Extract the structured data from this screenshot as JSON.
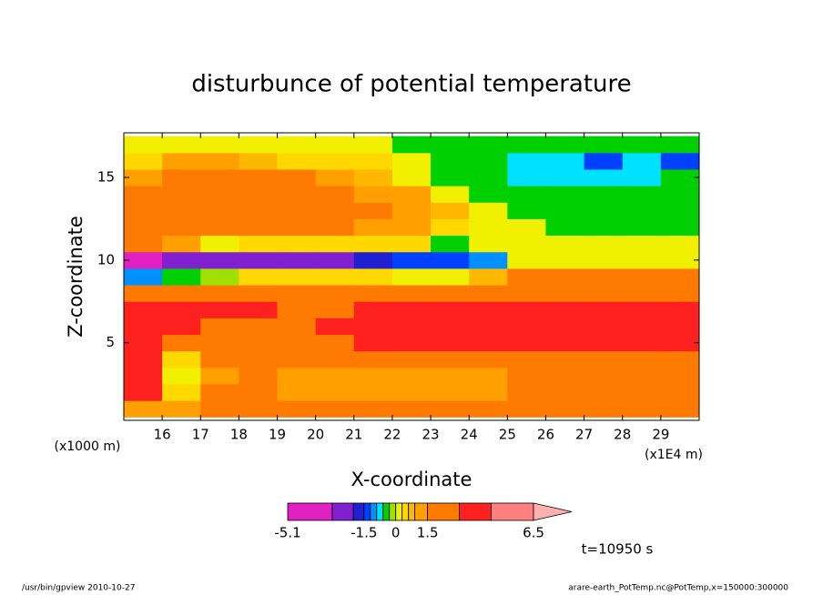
{
  "chart_data": {
    "type": "contour",
    "title": "disturbunce of potential temperature",
    "xlabel": "X-coordinate",
    "ylabel": "Z-coordinate",
    "x_unit_label": "(x1E4 m)",
    "y_unit_label": "(x1000 m)",
    "annotation": "t=10950 s",
    "xlim": [
      15,
      30
    ],
    "ylim": [
      0.3,
      17.7
    ],
    "xticks": [
      16,
      17,
      18,
      19,
      20,
      21,
      22,
      23,
      24,
      25,
      26,
      27,
      28,
      29
    ],
    "yticks": [
      5,
      10,
      15
    ],
    "x": [
      15.5,
      16.5,
      17.5,
      18.5,
      19.5,
      20.5,
      21.5,
      22.5,
      23.5,
      24.5,
      25.5,
      26.5,
      27.5,
      28.5,
      29.5
    ],
    "y": [
      1,
      2,
      3,
      4,
      5,
      6,
      7,
      8,
      9,
      10,
      11,
      12,
      13,
      14,
      15,
      16,
      17
    ],
    "z": [
      [
        1.0,
        1.2,
        1.8,
        1.8,
        1.8,
        1.8,
        1.8,
        1.8,
        1.8,
        1.8,
        1.8,
        2.0,
        2.0,
        2.0,
        2.0
      ],
      [
        3.5,
        0.5,
        1.8,
        1.8,
        1.2,
        1.2,
        1.2,
        1.2,
        1.2,
        1.2,
        1.8,
        2.0,
        2.0,
        2.0,
        2.0
      ],
      [
        3.5,
        0.2,
        1.0,
        1.5,
        1.2,
        1.2,
        1.2,
        1.2,
        1.2,
        1.2,
        2.0,
        2.0,
        2.0,
        2.0,
        2.0
      ],
      [
        3.5,
        0.5,
        1.8,
        2.0,
        2.0,
        2.0,
        2.0,
        2.0,
        2.0,
        2.0,
        2.0,
        2.0,
        2.0,
        2.0,
        2.0
      ],
      [
        3.5,
        2.5,
        2.0,
        2.0,
        2.0,
        2.5,
        3.5,
        3.5,
        3.5,
        3.5,
        3.5,
        3.5,
        3.5,
        3.5,
        3.5
      ],
      [
        3.5,
        3.5,
        2.0,
        2.0,
        2.5,
        3.5,
        3.5,
        3.5,
        3.5,
        3.5,
        3.5,
        3.5,
        3.5,
        3.5,
        3.5
      ],
      [
        3.5,
        3.5,
        3.5,
        3.5,
        2.0,
        2.0,
        3.5,
        3.5,
        3.5,
        3.5,
        3.5,
        3.5,
        3.5,
        3.5,
        3.5
      ],
      [
        2.0,
        2.0,
        2.0,
        2.0,
        2.0,
        2.0,
        2.0,
        2.0,
        2.0,
        2.0,
        2.0,
        2.0,
        2.0,
        2.0,
        2.0
      ],
      [
        -1.0,
        -0.5,
        -0.2,
        0.5,
        0.5,
        0.5,
        0.5,
        0.1,
        0.2,
        0.8,
        1.5,
        2.0,
        2.0,
        2.0,
        2.0
      ],
      [
        -4.0,
        -2.5,
        -2.5,
        -2.5,
        -2.5,
        -2.5,
        -2.0,
        -1.5,
        -1.3,
        -1.0,
        0.1,
        0.2,
        0.2,
        0.2,
        0.2
      ],
      [
        1.5,
        1.0,
        0.1,
        0.5,
        0.5,
        0.5,
        0.5,
        0.5,
        -0.4,
        0.1,
        0.1,
        0.1,
        0.1,
        0.1,
        0.1
      ],
      [
        2.0,
        2.0,
        2.0,
        2.0,
        2.0,
        2.0,
        1.2,
        1.0,
        0.5,
        0.2,
        0.1,
        -0.4,
        -0.4,
        -0.4,
        -0.4
      ],
      [
        2.0,
        2.0,
        2.0,
        2.0,
        2.0,
        2.0,
        2.0,
        1.2,
        0.6,
        0.2,
        -0.4,
        -0.4,
        -0.4,
        -0.4,
        -0.4
      ],
      [
        2.0,
        2.0,
        2.0,
        2.0,
        2.0,
        2.0,
        1.2,
        1.0,
        0.2,
        -0.4,
        -0.4,
        -0.4,
        -0.4,
        -0.4,
        -0.4
      ],
      [
        1.2,
        2.0,
        2.0,
        2.0,
        2.0,
        1.2,
        0.8,
        0.2,
        -0.4,
        -0.4,
        -0.7,
        -0.7,
        -0.7,
        -0.7,
        -0.4
      ],
      [
        0.5,
        1.0,
        1.0,
        0.8,
        0.5,
        0.5,
        0.4,
        0.1,
        -0.4,
        -0.4,
        -0.8,
        -0.8,
        -1.3,
        -0.8,
        -1.3
      ],
      [
        0.2,
        0.2,
        0.2,
        0.2,
        0.2,
        0.2,
        0.2,
        -0.4,
        -0.4,
        -0.4,
        -0.4,
        -0.4,
        -0.4,
        -0.4,
        -0.4
      ]
    ],
    "colorbar": {
      "levels": [
        -5.1,
        -3,
        -2,
        -1.5,
        -1.2,
        -0.9,
        -0.6,
        -0.3,
        0,
        0.3,
        0.6,
        0.9,
        1.5,
        3,
        4.5,
        6.5
      ],
      "colors": [
        "#e020c0",
        "#8020d0",
        "#2020d0",
        "#0040ff",
        "#0090ff",
        "#00e0ff",
        "#00d000",
        "#a0e000",
        "#f0f000",
        "#ffd800",
        "#ffb800",
        "#ffa000",
        "#ff7a00",
        "#ff2020",
        "#ff8080",
        "#ffb0b0"
      ],
      "ticks": [
        -5.1,
        -1.5,
        0,
        1.5,
        6.5
      ]
    }
  },
  "footer": {
    "left": "/usr/bin/gpview  2010-10-27",
    "right": "arare-earth_PotTemp.nc@PotTemp,x=150000:300000"
  }
}
